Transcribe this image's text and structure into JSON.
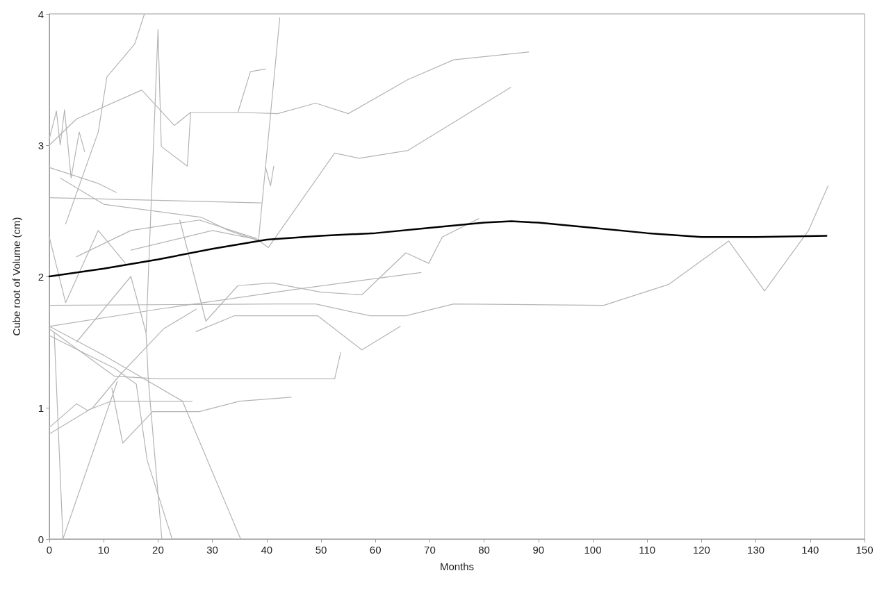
{
  "chart_data": {
    "type": "line",
    "xlabel": "Months",
    "ylabel": "Cube root of Volume (cm)",
    "xlim": [
      0,
      150
    ],
    "xticks": [
      0,
      10,
      20,
      30,
      40,
      50,
      60,
      70,
      80,
      90,
      100,
      110,
      120,
      130,
      140,
      150
    ],
    "ylim": [
      0,
      4
    ],
    "yticks": [
      0,
      1,
      2,
      3,
      4
    ],
    "grid": false,
    "marker": "none",
    "line_style": "solid",
    "series": [
      {
        "color": "#b4b4b4",
        "x": [
          0,
          42,
          49,
          59,
          65.6,
          74.4,
          102,
          114,
          125,
          131.6,
          139.7,
          143.3
        ],
        "values": [
          1.78,
          1.79,
          1.79,
          1.7,
          1.7,
          1.79,
          1.78,
          1.94,
          2.27,
          1.89,
          2.35,
          2.69
        ]
      },
      {
        "color": "#b4b4b4",
        "x": [
          0,
          5,
          17,
          23,
          26,
          34.7,
          42,
          49,
          55,
          66,
          74.4,
          88.2
        ],
        "values": [
          3.0,
          3.2,
          3.42,
          3.15,
          3.25,
          3.25,
          3.24,
          3.32,
          3.24,
          3.5,
          3.65,
          3.71
        ]
      },
      {
        "color": "#b4b4b4",
        "x": [
          5,
          15,
          27.6,
          38,
          40.3,
          52.5,
          57,
          66,
          84.9
        ],
        "values": [
          2.15,
          2.35,
          2.43,
          2.29,
          2.22,
          2.94,
          2.9,
          2.96,
          3.44
        ]
      },
      {
        "color": "#b4b4b4",
        "x": [
          24,
          28.8,
          34.7,
          41,
          50,
          57.5,
          65.6,
          69.8,
          72.3,
          79
        ],
        "values": [
          2.43,
          1.66,
          1.93,
          1.95,
          1.88,
          1.86,
          2.18,
          2.1,
          2.3,
          2.44
        ]
      },
      {
        "color": "#b4b4b4",
        "x": [
          0,
          20,
          45,
          68.4
        ],
        "values": [
          1.62,
          1.75,
          1.9,
          2.03
        ]
      },
      {
        "color": "#b4b4b4",
        "x": [
          27,
          34,
          49.4,
          57.5,
          64.6
        ],
        "values": [
          1.58,
          1.7,
          1.7,
          1.44,
          1.62
        ]
      },
      {
        "color": "#b4b4b4",
        "x": [
          0,
          12,
          20,
          52.5,
          53.6
        ],
        "values": [
          1.6,
          1.24,
          1.22,
          1.22,
          1.42
        ]
      },
      {
        "color": "#b4b4b4",
        "x": [
          11.5,
          13.5,
          19,
          27.6,
          35,
          44.5
        ],
        "values": [
          1.15,
          0.73,
          0.97,
          0.97,
          1.05,
          1.08
        ]
      },
      {
        "color": "#b4b4b4",
        "x": [
          0,
          5,
          7,
          11.4,
          26.3
        ],
        "values": [
          0.85,
          1.03,
          0.98,
          1.05,
          1.05
        ]
      },
      {
        "color": "#b4b4b4",
        "x": [
          0,
          10,
          24.5,
          35.2
        ],
        "values": [
          1.62,
          1.4,
          1.05,
          0
        ]
      },
      {
        "color": "#b4b4b4",
        "x": [
          0.9,
          2.5,
          12.5
        ],
        "values": [
          1.57,
          0,
          1.2
        ]
      },
      {
        "color": "#b4b4b4",
        "x": [
          5,
          15,
          17.8,
          20,
          20.6,
          25.4,
          26
        ],
        "values": [
          1.5,
          2.0,
          1.57,
          3.88,
          2.99,
          2.84,
          3.25
        ]
      },
      {
        "color": "#b4b4b4",
        "x": [
          17.8,
          18.2,
          20.7
        ],
        "values": [
          1.57,
          1.22,
          0
        ]
      },
      {
        "color": "#b4b4b4",
        "x": [
          0,
          12,
          16,
          18,
          22.6,
          33.6
        ],
        "values": [
          1.55,
          1.3,
          1.18,
          0.6,
          0,
          0
        ]
      },
      {
        "color": "#b4b4b4",
        "x": [
          3,
          9,
          10.6,
          15.7,
          17.5
        ],
        "values": [
          2.4,
          3.1,
          3.52,
          3.77,
          4.0
        ]
      },
      {
        "color": "#b4b4b4",
        "x": [
          15,
          30,
          38.5,
          42.4
        ],
        "values": [
          2.2,
          2.35,
          2.28,
          3.97
        ]
      },
      {
        "color": "#b4b4b4",
        "x": [
          34.7,
          37,
          39.8
        ],
        "values": [
          3.25,
          3.56,
          3.58
        ]
      },
      {
        "color": "#b4b4b4",
        "x": [
          0,
          39
        ],
        "values": [
          2.6,
          2.56
        ]
      },
      {
        "color": "#b4b4b4",
        "x": [
          39.8,
          40.7,
          41.3
        ],
        "values": [
          2.83,
          2.69,
          2.84
        ]
      },
      {
        "color": "#b4b4b4",
        "x": [
          0,
          8.9,
          12.3
        ],
        "values": [
          2.83,
          2.71,
          2.64
        ]
      },
      {
        "color": "#b4b4b4",
        "x": [
          0,
          1.3,
          2,
          2.8,
          4,
          5.5,
          6.5
        ],
        "values": [
          3.05,
          3.26,
          3.0,
          3.27,
          2.75,
          3.1,
          2.95
        ]
      },
      {
        "color": "#b4b4b4",
        "x": [
          0,
          3,
          9,
          14
        ],
        "values": [
          2.3,
          1.8,
          2.35,
          2.1
        ]
      },
      {
        "color": "#b4b4b4",
        "x": [
          2,
          10,
          28,
          33,
          38
        ],
        "values": [
          2.75,
          2.55,
          2.45,
          2.35,
          2.28
        ]
      },
      {
        "color": "#b4b4b4",
        "x": [
          0,
          8,
          13,
          21,
          27
        ],
        "values": [
          0.8,
          1.0,
          1.25,
          1.6,
          1.75
        ]
      },
      {
        "color": "#000000",
        "x": [
          0,
          10,
          20,
          30,
          40,
          50,
          60,
          70,
          80,
          85,
          90,
          100,
          110,
          120,
          130,
          143
        ],
        "values": [
          2.0,
          2.06,
          2.13,
          2.21,
          2.28,
          2.31,
          2.33,
          2.37,
          2.41,
          2.42,
          2.41,
          2.37,
          2.33,
          2.3,
          2.3,
          2.31
        ]
      }
    ]
  }
}
